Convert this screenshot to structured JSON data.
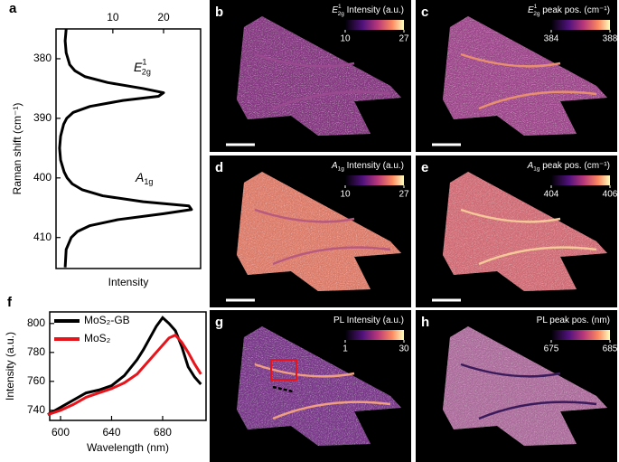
{
  "chart_data": [
    {
      "type": "line",
      "label": "a",
      "xlabel": "Intensity",
      "ylabel": "Raman shift (cm⁻¹)",
      "y": [
        375,
        377,
        379,
        381,
        382,
        383,
        384,
        385,
        385.7,
        386.3,
        387,
        388,
        389,
        390,
        391,
        393,
        395,
        397,
        399,
        400,
        401,
        402,
        403,
        404,
        404.7,
        405.3,
        406,
        407,
        408,
        409,
        410,
        412,
        415
      ],
      "values": [
        0.8,
        0.6,
        0.8,
        1.5,
        2.5,
        4.5,
        9,
        16,
        20,
        19,
        12,
        5.5,
        2.2,
        0.9,
        0.3,
        -0.3,
        -0.5,
        -0.3,
        0.4,
        1,
        2,
        4,
        8,
        16,
        25,
        25.5,
        20,
        11,
        5.5,
        3,
        1.8,
        0.8,
        0.6
      ],
      "color": "#000000",
      "xlim": [
        -1.2,
        27.3
      ],
      "xticks": [
        10,
        20
      ],
      "ylim": [
        375,
        415.2
      ],
      "yticks": [
        380,
        390,
        400,
        410
      ],
      "y_reversed": true,
      "annotations": [
        {
          "main": "E",
          "sup": "1",
          "sub": "2g"
        },
        {
          "main": "A",
          "sub": "1g"
        }
      ]
    },
    {
      "type": "line",
      "label": "f",
      "xlabel": "Wavelength (nm)",
      "ylabel": "Intensity (a.u.)",
      "x": [
        590,
        600,
        610,
        620,
        630,
        640,
        650,
        660,
        665,
        670,
        675,
        680,
        685,
        690,
        695,
        700,
        705,
        710
      ],
      "series": [
        {
          "name": "MoS₂-GB",
          "color": "#000000",
          "values": [
            737,
            742,
            747,
            752,
            754,
            757,
            764,
            775,
            782,
            790,
            798,
            804,
            800,
            795,
            784,
            770,
            763,
            758
          ]
        },
        {
          "name": "MoS₂",
          "color": "#e8141c",
          "values": [
            737,
            740,
            744,
            749,
            752,
            755,
            759,
            765,
            770,
            775,
            780,
            785,
            790,
            792,
            787,
            780,
            772,
            765
          ]
        }
      ],
      "xlim": [
        591.5,
        714
      ],
      "xticks": [
        600,
        640,
        680
      ],
      "ylim": [
        733,
        808
      ],
      "yticks": [
        740,
        760,
        780,
        800
      ],
      "legend": "top-left"
    }
  ],
  "maps": [
    {
      "label": "b",
      "title": {
        "main": "E",
        "sup": "1",
        "sub": "2g",
        "text": " Intensity (a.u.)"
      },
      "cbar_ticks": [
        10,
        27
      ],
      "flake_color": "#8a3a86",
      "boundary_color": "#9a4a8e"
    },
    {
      "label": "c",
      "title": {
        "main": "E",
        "sup": "1",
        "sub": "2g",
        "text": " peak pos. (cm⁻¹)"
      },
      "cbar_ticks": [
        384,
        388
      ],
      "flake_color": "#a24a90",
      "boundary_color": "#e8906e"
    },
    {
      "label": "d",
      "title": {
        "main": "A",
        "sub": "1g",
        "text": " Intensity (a.u.)"
      },
      "cbar_ticks": [
        10,
        27
      ],
      "flake_color": "#e0806e",
      "boundary_color": "#b85a7e"
    },
    {
      "label": "e",
      "title": {
        "main": "A",
        "sub": "1g",
        "text": " peak pos. (cm⁻¹)"
      },
      "cbar_ticks": [
        404,
        406
      ],
      "flake_color": "#d4707a",
      "boundary_color": "#f5c89a"
    },
    {
      "label": "g",
      "title": {
        "text": "PL Intensity (a.u.)"
      },
      "cbar_ticks": [
        1,
        30
      ],
      "flake_color": "#7e3a8e",
      "boundary_color": "#f0a080"
    },
    {
      "label": "h",
      "title": {
        "text": "PL peak pos. (nm)"
      },
      "cbar_ticks": [
        675,
        685
      ],
      "flake_color": "#b070a0",
      "boundary_color": "#3a1a5a"
    }
  ]
}
